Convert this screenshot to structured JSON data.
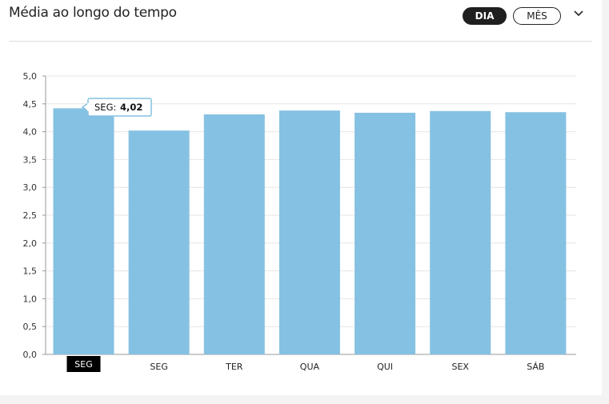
{
  "header": {
    "title": "Média ao longo do tempo",
    "toggle_day": "DIA",
    "toggle_month": "MÊS"
  },
  "chart_data": {
    "type": "bar",
    "categories": [
      "SEG",
      "SEG",
      "TER",
      "QUA",
      "QUI",
      "SEX",
      "SÁB"
    ],
    "values": [
      4.42,
      4.02,
      4.31,
      4.38,
      4.34,
      4.37,
      4.35
    ],
    "ylim": [
      0,
      5
    ],
    "yticks": [
      "0,0",
      "0,5",
      "1,0",
      "1,5",
      "2,0",
      "2,5",
      "3,0",
      "3,5",
      "4,0",
      "4,5",
      "5,0"
    ],
    "highlighted_category_index": 0,
    "tooltip": {
      "label": "SEG:",
      "value": "4,02"
    },
    "bar_color": "#85c1e2",
    "grid": true
  }
}
